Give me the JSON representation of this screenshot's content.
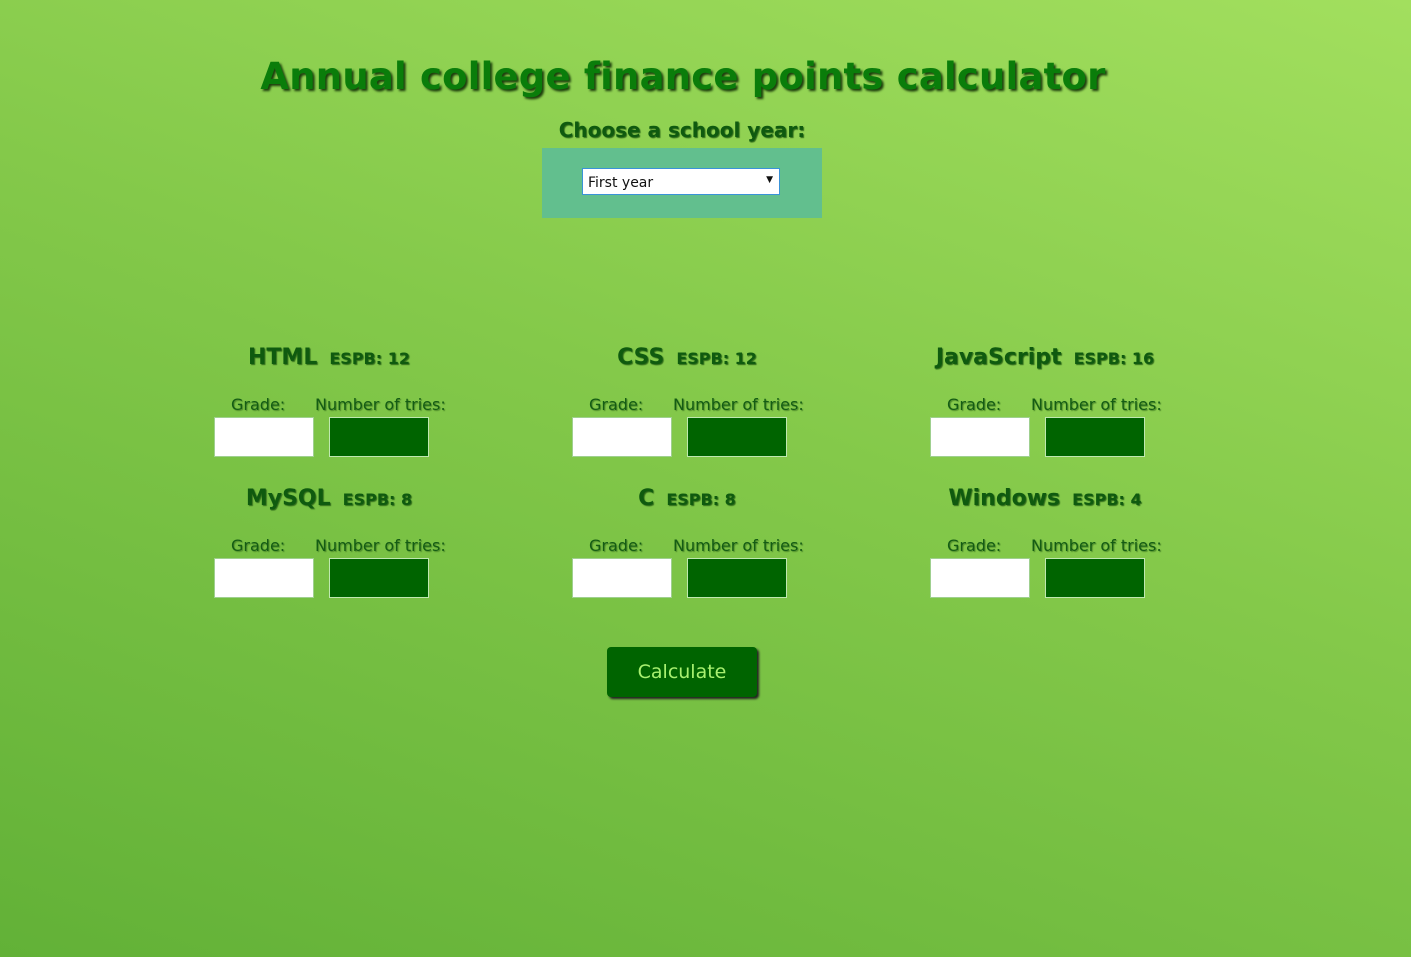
{
  "page": {
    "title": "Annual college finance points calculator"
  },
  "year_selector": {
    "label": "Choose a school year:",
    "selected": "First year"
  },
  "courses": [
    {
      "name": "HTML",
      "espb": "ESPB: 12",
      "grade_label": "Grade:",
      "tries_label": "Number of tries:"
    },
    {
      "name": "CSS",
      "espb": "ESPB: 12",
      "grade_label": "Grade:",
      "tries_label": "Number of tries:"
    },
    {
      "name": "JavaScript",
      "espb": "ESPB: 16",
      "grade_label": "Grade:",
      "tries_label": "Number of tries:"
    },
    {
      "name": "MySQL",
      "espb": "ESPB: 8",
      "grade_label": "Grade:",
      "tries_label": "Number of tries:"
    },
    {
      "name": "C",
      "espb": "ESPB: 8",
      "grade_label": "Grade:",
      "tries_label": "Number of tries:"
    },
    {
      "name": "Windows",
      "espb": "ESPB: 4",
      "grade_label": "Grade:",
      "tries_label": "Number of tries:"
    }
  ],
  "actions": {
    "calculate_label": "Calculate"
  },
  "colors": {
    "accent": "#006400",
    "title_text": "#0a7d0a",
    "panel": "#62bf8e",
    "background_top": "#a2df5e",
    "background_bottom": "#62b137"
  },
  "icons": {
    "dropdown": "chevron-down-icon"
  }
}
